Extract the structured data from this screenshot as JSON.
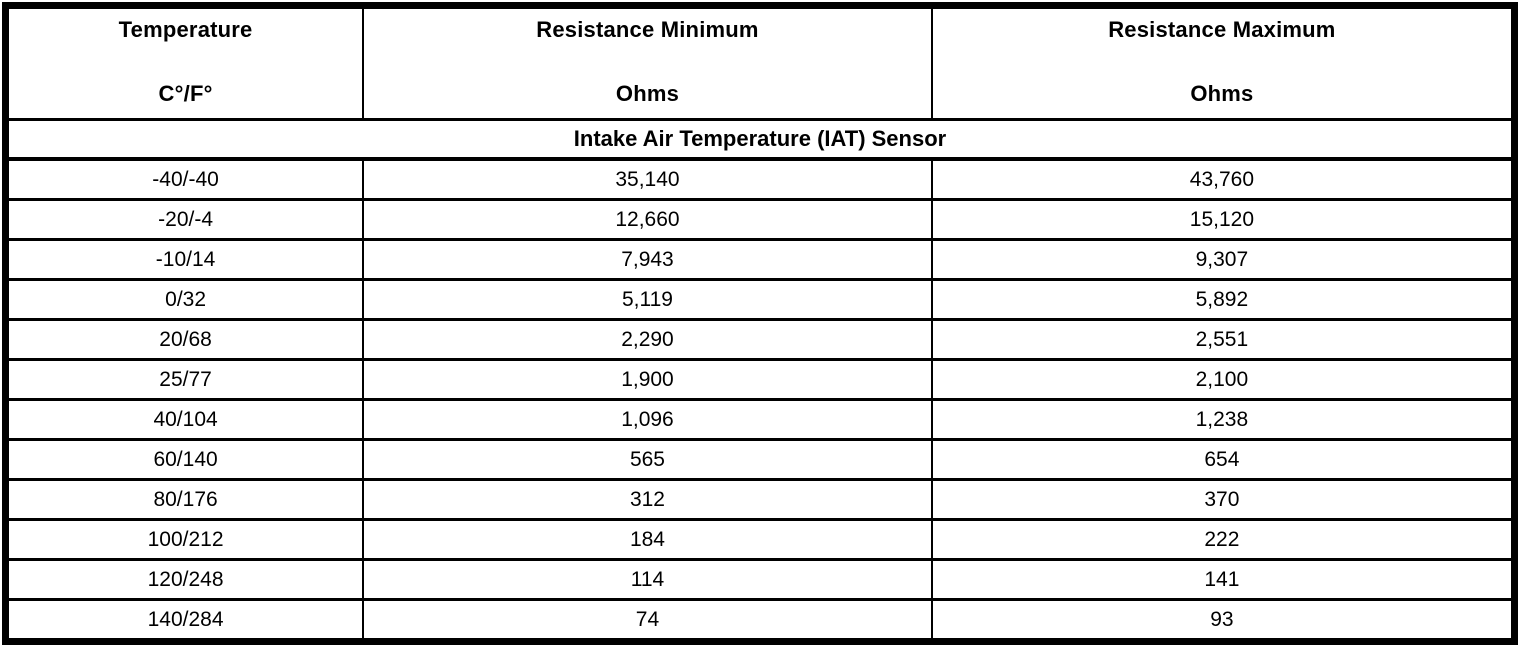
{
  "table": {
    "columns": [
      {
        "title": "Temperature",
        "subtitle": "C°/F°"
      },
      {
        "title": "Resistance Minimum",
        "subtitle": "Ohms"
      },
      {
        "title": "Resistance Maximum",
        "subtitle": "Ohms"
      }
    ],
    "section_title": "Intake Air Temperature (IAT) Sensor",
    "rows": [
      {
        "temp": "-40/-40",
        "min": "35,140",
        "max": "43,760"
      },
      {
        "temp": "-20/-4",
        "min": "12,660",
        "max": "15,120"
      },
      {
        "temp": "-10/14",
        "min": "7,943",
        "max": "9,307"
      },
      {
        "temp": "0/32",
        "min": "5,119",
        "max": "5,892"
      },
      {
        "temp": "20/68",
        "min": "2,290",
        "max": "2,551"
      },
      {
        "temp": "25/77",
        "min": "1,900",
        "max": "2,100"
      },
      {
        "temp": "40/104",
        "min": "1,096",
        "max": "1,238"
      },
      {
        "temp": "60/140",
        "min": "565",
        "max": "654"
      },
      {
        "temp": "80/176",
        "min": "312",
        "max": "370"
      },
      {
        "temp": "100/212",
        "min": "184",
        "max": "222"
      },
      {
        "temp": "120/248",
        "min": "114",
        "max": "141"
      },
      {
        "temp": "140/284",
        "min": "74",
        "max": "93"
      }
    ],
    "colors": {
      "border": "#000000",
      "background": "#ffffff",
      "text": "#000000"
    }
  }
}
